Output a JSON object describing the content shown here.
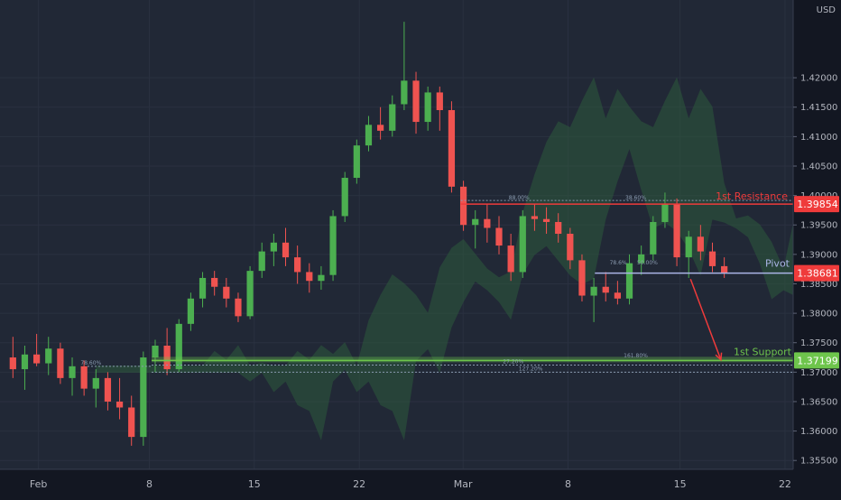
{
  "chart_data": {
    "type": "candlestick",
    "currency_label": "USD",
    "colors": {
      "background": "#212836",
      "panel": "#131722",
      "up": "#4caf50",
      "down": "#ef5350",
      "resistance": "#ef3b3b",
      "pivot": "#aab4e6",
      "support": "#6ec54c",
      "axis_text": "#b2b5be",
      "grid": "#2a3140",
      "cloud_green": "#2e5a3d",
      "cloud_red": "#5a2a35"
    },
    "y_axis": {
      "ylim": [
        1.3535,
        1.4332
      ],
      "ticks": [
        "1.42000",
        "1.41500",
        "1.41000",
        "1.40500",
        "1.40000",
        "1.39500",
        "1.39000",
        "1.38500",
        "1.38000",
        "1.37500",
        "1.37000",
        "1.36500",
        "1.36000",
        "1.35500"
      ],
      "tick_values": [
        1.42,
        1.415,
        1.41,
        1.405,
        1.4,
        1.395,
        1.39,
        1.385,
        1.38,
        1.375,
        1.37,
        1.365,
        1.36,
        1.355
      ]
    },
    "x_axis": {
      "xlim": [
        0,
        68
      ],
      "ticks": [
        {
          "label": "Feb",
          "x": 3.3
        },
        {
          "label": "8",
          "x": 12.8
        },
        {
          "label": "15",
          "x": 21.8
        },
        {
          "label": "22",
          "x": 30.8
        },
        {
          "label": "Mar",
          "x": 39.7
        },
        {
          "label": "8",
          "x": 48.7
        },
        {
          "label": "15",
          "x": 58.3
        },
        {
          "label": "22",
          "x": 67.3
        }
      ]
    },
    "candles": [
      [
        1.3725,
        1.376,
        1.369,
        1.3705
      ],
      [
        1.3705,
        1.3745,
        1.367,
        1.373
      ],
      [
        1.373,
        1.3765,
        1.371,
        1.3715
      ],
      [
        1.3715,
        1.376,
        1.3695,
        1.374
      ],
      [
        1.374,
        1.375,
        1.368,
        1.369
      ],
      [
        1.369,
        1.3725,
        1.366,
        1.371
      ],
      [
        1.371,
        1.372,
        1.366,
        1.3672
      ],
      [
        1.3672,
        1.3705,
        1.364,
        1.369
      ],
      [
        1.369,
        1.37,
        1.3635,
        1.365
      ],
      [
        1.365,
        1.369,
        1.362,
        1.364
      ],
      [
        1.364,
        1.366,
        1.3575,
        1.359
      ],
      [
        1.359,
        1.3735,
        1.3575,
        1.3725
      ],
      [
        1.3725,
        1.3755,
        1.37,
        1.3745
      ],
      [
        1.3745,
        1.3775,
        1.3695,
        1.3705
      ],
      [
        1.3705,
        1.379,
        1.37,
        1.3782
      ],
      [
        1.3782,
        1.3835,
        1.377,
        1.3825
      ],
      [
        1.3825,
        1.387,
        1.381,
        1.386
      ],
      [
        1.386,
        1.3872,
        1.383,
        1.3845
      ],
      [
        1.3845,
        1.386,
        1.381,
        1.3825
      ],
      [
        1.3825,
        1.3835,
        1.3785,
        1.3795
      ],
      [
        1.3795,
        1.388,
        1.379,
        1.3872
      ],
      [
        1.3872,
        1.392,
        1.386,
        1.3905
      ],
      [
        1.3905,
        1.3935,
        1.388,
        1.392
      ],
      [
        1.392,
        1.3945,
        1.388,
        1.3895
      ],
      [
        1.3895,
        1.3915,
        1.385,
        1.387
      ],
      [
        1.387,
        1.3885,
        1.3835,
        1.3855
      ],
      [
        1.3855,
        1.388,
        1.384,
        1.3865
      ],
      [
        1.3865,
        1.3975,
        1.3855,
        1.3965
      ],
      [
        1.3965,
        1.404,
        1.3955,
        1.403
      ],
      [
        1.403,
        1.4095,
        1.402,
        1.4085
      ],
      [
        1.4085,
        1.4135,
        1.4075,
        1.412
      ],
      [
        1.412,
        1.415,
        1.4095,
        1.411
      ],
      [
        1.411,
        1.417,
        1.41,
        1.4155
      ],
      [
        1.4155,
        1.4295,
        1.4145,
        1.4195
      ],
      [
        1.4195,
        1.421,
        1.4105,
        1.4125
      ],
      [
        1.4125,
        1.4185,
        1.411,
        1.4175
      ],
      [
        1.4175,
        1.4185,
        1.411,
        1.4145
      ],
      [
        1.4145,
        1.416,
        1.4005,
        1.4015
      ],
      [
        1.4015,
        1.4025,
        1.394,
        1.395
      ],
      [
        1.395,
        1.3975,
        1.391,
        1.396
      ],
      [
        1.396,
        1.3985,
        1.392,
        1.3945
      ],
      [
        1.3945,
        1.3965,
        1.39,
        1.3915
      ],
      [
        1.3915,
        1.3935,
        1.3855,
        1.387
      ],
      [
        1.387,
        1.3975,
        1.386,
        1.3965
      ],
      [
        1.3965,
        1.3985,
        1.394,
        1.396
      ],
      [
        1.396,
        1.398,
        1.3935,
        1.3955
      ],
      [
        1.3955,
        1.397,
        1.392,
        1.3935
      ],
      [
        1.3935,
        1.3945,
        1.3875,
        1.389
      ],
      [
        1.389,
        1.39,
        1.382,
        1.383
      ],
      [
        1.383,
        1.386,
        1.3785,
        1.3845
      ],
      [
        1.3845,
        1.387,
        1.382,
        1.3835
      ],
      [
        1.3835,
        1.3855,
        1.3815,
        1.3825
      ],
      [
        1.3825,
        1.39,
        1.3815,
        1.3885
      ],
      [
        1.3885,
        1.3915,
        1.3865,
        1.39
      ],
      [
        1.39,
        1.3965,
        1.389,
        1.3955
      ],
      [
        1.3955,
        1.4005,
        1.3945,
        1.3985
      ],
      [
        1.3985,
        1.3995,
        1.388,
        1.3895
      ],
      [
        1.3895,
        1.394,
        1.386,
        1.393
      ],
      [
        1.393,
        1.395,
        1.389,
        1.3905
      ],
      [
        1.3905,
        1.392,
        1.387,
        1.388
      ],
      [
        1.388,
        1.3895,
        1.386,
        1.3868
      ]
    ],
    "levels": [
      {
        "name": "1st Resistance",
        "value": 1.39854,
        "label": "1.39854"
      },
      {
        "name": "Pivot",
        "value": 1.38681,
        "label": "1.38681"
      },
      {
        "name": "1st Support",
        "value": 1.37199,
        "label": "1.37199"
      }
    ],
    "fib_labels": [
      {
        "text": "88.00%",
        "x": 44.5,
        "y": 1.399
      },
      {
        "text": "38.60%",
        "x": 54.5,
        "y": 1.399
      },
      {
        "text": "78.60%",
        "x": 7.8,
        "y": 1.371
      },
      {
        "text": "78.6%",
        "x": 53.0,
        "y": 1.388
      },
      {
        "text": "50.00%",
        "x": 55.5,
        "y": 1.388
      },
      {
        "text": "161.80%",
        "x": 54.5,
        "y": 1.3722
      },
      {
        "text": "27.20%",
        "x": 44.0,
        "y": 1.3712
      },
      {
        "text": "127.20%",
        "x": 45.5,
        "y": 1.37
      }
    ],
    "projection": {
      "from": [
        59.2,
        1.3858
      ],
      "to": [
        61.8,
        1.3721
      ]
    }
  }
}
